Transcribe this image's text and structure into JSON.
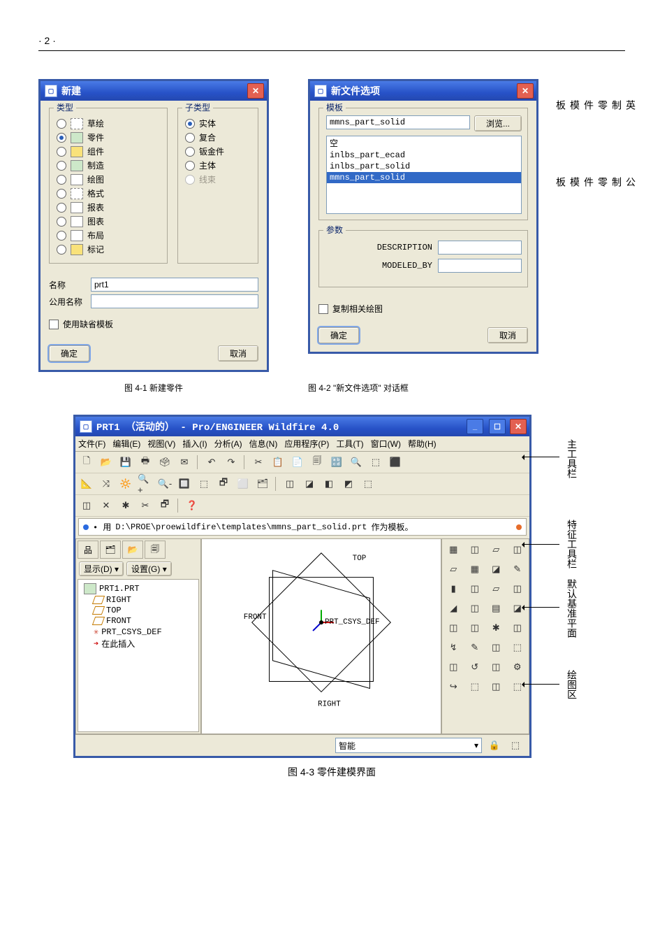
{
  "page_number": "· 2 ·",
  "dialog1": {
    "title": "新建",
    "group_type_label": "类型",
    "group_subtype_label": "子类型",
    "types": [
      {
        "label": "草绘",
        "icon": "dashed"
      },
      {
        "label": "零件",
        "icon": "fill-g",
        "selected": true
      },
      {
        "label": "组件",
        "icon": "fill-y"
      },
      {
        "label": "制造",
        "icon": "fill-g"
      },
      {
        "label": "绘图",
        "icon": "plain"
      },
      {
        "label": "格式",
        "icon": "dashed"
      },
      {
        "label": "报表",
        "icon": "plain"
      },
      {
        "label": "图表",
        "icon": "plain"
      },
      {
        "label": "布局",
        "icon": "plain"
      },
      {
        "label": "标记",
        "icon": "fill-y"
      }
    ],
    "subtypes": [
      {
        "label": "实体",
        "selected": true
      },
      {
        "label": "复合"
      },
      {
        "label": "钣金件"
      },
      {
        "label": "主体"
      },
      {
        "label": "线束",
        "disabled": true
      }
    ],
    "name_label": "名称",
    "name_value": "prt1",
    "common_name_label": "公用名称",
    "common_name_value": "",
    "default_template_label": "使用缺省模板",
    "ok_label": "确定",
    "cancel_label": "取消"
  },
  "dialog2": {
    "title": "新文件选项",
    "template_group": "模板",
    "template_value": "mmns_part_solid",
    "browse_label": "浏览...",
    "list": [
      {
        "label": "空"
      },
      {
        "label": "inlbs_part_ecad"
      },
      {
        "label": "inlbs_part_solid"
      },
      {
        "label": "mmns_part_solid",
        "selected": true
      }
    ],
    "params_group": "参数",
    "param1_label": "DESCRIPTION",
    "param1_value": "",
    "param2_label": "MODELED_BY",
    "param2_value": "",
    "copy_draw_label": "复制相关绘图",
    "ok_label": "确定",
    "cancel_label": "取消"
  },
  "side_annotations_dlg2": {
    "a1": "英制零件模板",
    "a2": "公制零件模板"
  },
  "caption1": "图 4-1  新建零件",
  "caption2": "图 4-2  \"新文件选项\" 对话框",
  "mainwin": {
    "title": "PRT1 （活动的） - Pro/ENGINEER Wildfire 4.0",
    "menu": [
      "文件(F)",
      "编辑(E)",
      "视图(V)",
      "插入(I)",
      "分析(A)",
      "信息(N)",
      "应用程序(P)",
      "工具(T)",
      "窗口(W)",
      "帮助(H)"
    ],
    "msg_prefix": "• 用",
    "msg_path": "D:\\PROE\\proewildfire\\templates\\mmns_part_solid.prt",
    "msg_suffix": "作为模板。",
    "tree_tabs": [
      "品",
      "🗂",
      "📂",
      "🗐"
    ],
    "show_btn": "显示(D) ▾",
    "set_btn": "设置(G) ▾",
    "tree": {
      "root": "PRT1.PRT",
      "items": [
        "RIGHT",
        "TOP",
        "FRONT",
        "PRT_CSYS_DEF",
        "在此插入"
      ]
    },
    "canvas_labels": {
      "top": "TOP",
      "front": "FRONT",
      "right": "RIGHT",
      "csys": "PRT_CSYS_DEF"
    },
    "status_combo": "智能"
  },
  "toolbar_rows": [
    [
      "🗋",
      "📂",
      "💾",
      "🖶",
      "🗳",
      "✉",
      "|",
      "↶",
      "↷",
      "|",
      "✂",
      "📋",
      "📄",
      "🗐",
      "🔡",
      "🔍",
      "⬚",
      "⬛"
    ],
    [
      "📐",
      "⤨",
      "🔆",
      "🔍+",
      "🔍-",
      "🔲",
      "⬚",
      "🗗",
      "⬜",
      "🗂",
      "|",
      "◫",
      "◪",
      "◧",
      "◩",
      "⬚"
    ],
    [
      "◫",
      "✕",
      "✱",
      "✂",
      "🗗",
      "|",
      "❓"
    ]
  ],
  "rightbar_icons": [
    "▦",
    "◫",
    "▱",
    "◫",
    "▱",
    "▦",
    "◪",
    "✎",
    "▮",
    "◫",
    "▱",
    "◫",
    "◢",
    "◫",
    "▤",
    "◪",
    "◫",
    "◫",
    "✱",
    "◫",
    "↯",
    "✎",
    "◫",
    "⬚",
    "◫",
    "↺",
    "◫",
    "⚙",
    "↪",
    "⬚",
    "◫",
    "⬚"
  ],
  "fig3_annotations": {
    "a1": "主工具栏",
    "a2": "特征工具栏",
    "a3": "默认基准平面",
    "a4": "绘图区"
  },
  "caption3": "图 4-3  零件建模界面",
  "colors": {
    "titlebar_grad_top": "#4a7be6",
    "titlebar_grad_bot": "#2448b0",
    "dialog_border": "#385aa8",
    "dialog_bg": "#ece9d8",
    "group_border": "#aca899",
    "legend_color": "#0a246a",
    "selection_bg": "#3169c6",
    "close_bg": "#e36052",
    "input_border": "#7f9db9",
    "white": "#ffffff"
  }
}
